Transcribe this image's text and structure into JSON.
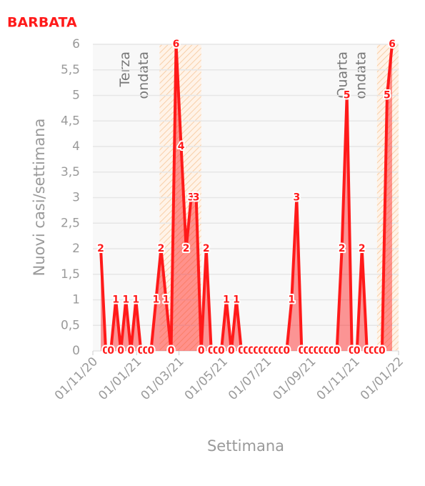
{
  "chart_data": {
    "type": "area",
    "title": "BARBATA",
    "x_label": "Settimana",
    "y_label": "Nuovi casi/settimana",
    "x": [
      "2020-11-12",
      "2020-11-19",
      "2020-11-26",
      "2020-12-03",
      "2020-12-10",
      "2020-12-17",
      "2020-12-24",
      "2020-12-31",
      "2021-01-07",
      "2021-01-14",
      "2021-01-21",
      "2021-01-28",
      "2021-02-04",
      "2021-02-11",
      "2021-02-18",
      "2021-02-25",
      "2021-03-04",
      "2021-03-11",
      "2021-03-18",
      "2021-03-25",
      "2021-04-01",
      "2021-04-08",
      "2021-04-15",
      "2021-04-22",
      "2021-04-29",
      "2021-05-06",
      "2021-05-13",
      "2021-05-20",
      "2021-05-27",
      "2021-06-03",
      "2021-06-10",
      "2021-06-17",
      "2021-06-24",
      "2021-07-01",
      "2021-07-08",
      "2021-07-15",
      "2021-07-22",
      "2021-07-29",
      "2021-08-05",
      "2021-08-12",
      "2021-08-19",
      "2021-08-26",
      "2021-09-02",
      "2021-09-09",
      "2021-09-16",
      "2021-09-23",
      "2021-09-30",
      "2021-10-07",
      "2021-10-14",
      "2021-10-21",
      "2021-10-28",
      "2021-11-04",
      "2021-11-11",
      "2021-11-18",
      "2021-11-25",
      "2021-12-02",
      "2021-12-09",
      "2021-12-16",
      "2021-12-23"
    ],
    "values": [
      2,
      0,
      0,
      1,
      0,
      1,
      0,
      1,
      0,
      0,
      0,
      1,
      2,
      1,
      0,
      6,
      4,
      2,
      3,
      3,
      0,
      2,
      0,
      0,
      0,
      1,
      0,
      1,
      0,
      0,
      0,
      0,
      0,
      0,
      0,
      0,
      0,
      0,
      1,
      3,
      0,
      0,
      0,
      0,
      0,
      0,
      0,
      0,
      2,
      5,
      0,
      0,
      2,
      0,
      0,
      0,
      0,
      5,
      6
    ],
    "color": "#ff1a1a",
    "xlim": [
      "2020-11-01",
      "2022-01-01"
    ],
    "xticks": [
      {
        "value": "2020-11-01",
        "label": "01/11/20"
      },
      {
        "value": "2021-01-01",
        "label": "01/01/21"
      },
      {
        "value": "2021-03-01",
        "label": "01/03/21"
      },
      {
        "value": "2021-05-01",
        "label": "01/05/21"
      },
      {
        "value": "2021-07-01",
        "label": "01/07/21"
      },
      {
        "value": "2021-09-01",
        "label": "01/09/21"
      },
      {
        "value": "2021-11-01",
        "label": "01/11/21"
      },
      {
        "value": "2022-01-01",
        "label": "01/01/22"
      }
    ],
    "ylim": [
      0,
      6
    ],
    "yticks": [
      0,
      {
        "value": 0.5,
        "label": "0,5"
      },
      1,
      {
        "value": 1.5,
        "label": "1,5"
      },
      2,
      {
        "value": 2.5,
        "label": "2,5"
      },
      3,
      {
        "value": 3.5,
        "label": "3,5"
      },
      4,
      {
        "value": 4.5,
        "label": "4,5"
      },
      5,
      {
        "value": 5.5,
        "label": "5,5"
      },
      6
    ],
    "grid": true,
    "bands": [
      {
        "start": "2021-02-02",
        "end": "2021-04-01",
        "label": [
          "Terza",
          "ondata"
        ]
      },
      {
        "start": "2021-12-02",
        "end": "2022-01-01",
        "label": [
          "Quarta",
          "ondata"
        ]
      }
    ]
  }
}
